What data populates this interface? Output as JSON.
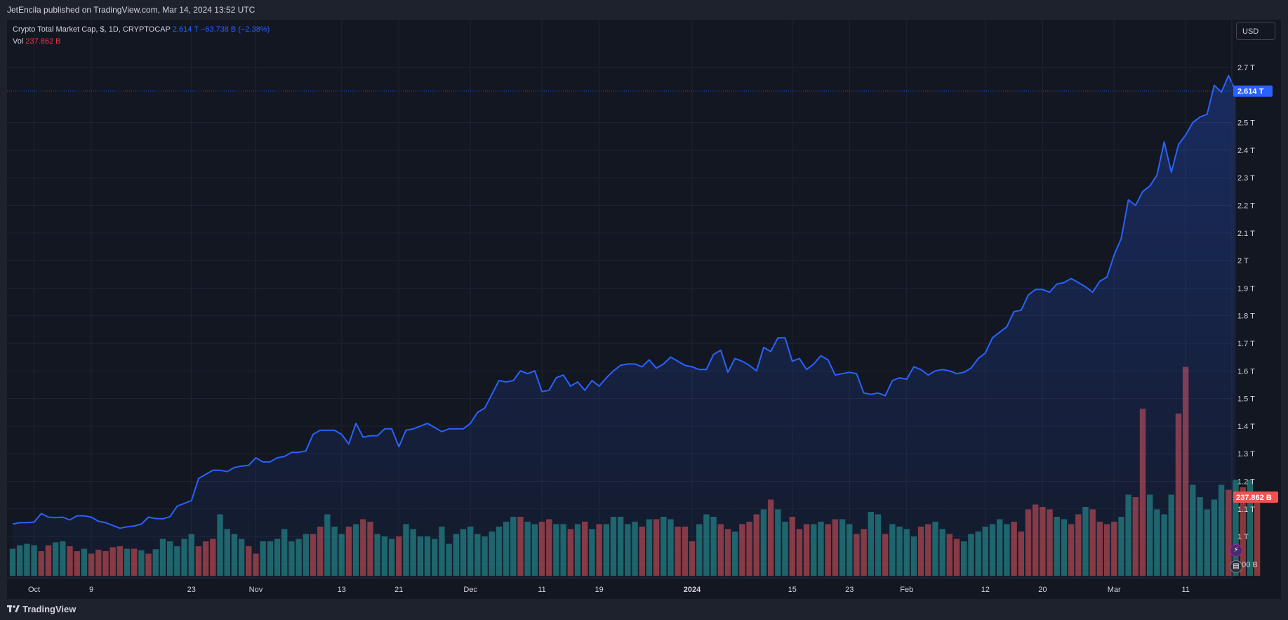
{
  "header": {
    "publish_line": "JetEncila published on TradingView.com, Mar 14, 2024 13:52 UTC"
  },
  "legend": {
    "symbol_text": "Crypto Total Market Cap, $, 1D, CRYPTOCAP",
    "last_value": "2.614 T",
    "change": "−63.738 B (−2.38%)",
    "vol_label": "Vol",
    "vol_value": "237.862 B"
  },
  "controls": {
    "currency_button": "USD"
  },
  "footer": {
    "brand": "TradingView"
  },
  "colors": {
    "line": "#2962ff",
    "up_bar": "#26a69a",
    "down_bar": "#ef5350",
    "background": "#131722",
    "grid": "#1f2430"
  },
  "chart_data": {
    "type": "area",
    "title": "Crypto Total Market Cap, $, 1D, CRYPTOCAP",
    "y_unit": "T",
    "ylim": [
      0.85,
      2.82
    ],
    "y_ticks": [
      {
        "value": 0.9,
        "label": "900 B"
      },
      {
        "value": 1.0,
        "label": "1 T"
      },
      {
        "value": 1.1,
        "label": "1.1 T"
      },
      {
        "value": 1.2,
        "label": "1.2 T"
      },
      {
        "value": 1.3,
        "label": "1.3 T"
      },
      {
        "value": 1.4,
        "label": "1.4 T"
      },
      {
        "value": 1.5,
        "label": "1.5 T"
      },
      {
        "value": 1.6,
        "label": "1.6 T"
      },
      {
        "value": 1.7,
        "label": "1.7 T"
      },
      {
        "value": 1.8,
        "label": "1.8 T"
      },
      {
        "value": 1.9,
        "label": "1.9 T"
      },
      {
        "value": 2.0,
        "label": "2 T"
      },
      {
        "value": 2.1,
        "label": "2.1 T"
      },
      {
        "value": 2.2,
        "label": "2.2 T"
      },
      {
        "value": 2.3,
        "label": "2.3 T"
      },
      {
        "value": 2.4,
        "label": "2.4 T"
      },
      {
        "value": 2.5,
        "label": "2.5 T"
      },
      {
        "value": 2.7,
        "label": "2.7 T"
      }
    ],
    "x_ticks": [
      {
        "day": 3,
        "label": "Oct"
      },
      {
        "day": 11,
        "label": "9"
      },
      {
        "day": 25,
        "label": "23"
      },
      {
        "day": 34,
        "label": "Nov"
      },
      {
        "day": 46,
        "label": "13"
      },
      {
        "day": 54,
        "label": "21"
      },
      {
        "day": 64,
        "label": "Dec"
      },
      {
        "day": 74,
        "label": "11"
      },
      {
        "day": 82,
        "label": "19"
      },
      {
        "day": 95,
        "label": "2024"
      },
      {
        "day": 109,
        "label": "15"
      },
      {
        "day": 117,
        "label": "23"
      },
      {
        "day": 125,
        "label": "Feb"
      },
      {
        "day": 136,
        "label": "12"
      },
      {
        "day": 144,
        "label": "20"
      },
      {
        "day": 154,
        "label": "Mar"
      },
      {
        "day": 164,
        "label": "11"
      }
    ],
    "price_label": "2.614 T",
    "last_price": 2.614,
    "volume_label": "237.862 B",
    "price": [
      1.045,
      1.05,
      1.05,
      1.052,
      1.083,
      1.07,
      1.068,
      1.07,
      1.06,
      1.075,
      1.075,
      1.07,
      1.055,
      1.05,
      1.04,
      1.03,
      1.035,
      1.038,
      1.045,
      1.07,
      1.065,
      1.064,
      1.072,
      1.11,
      1.12,
      1.13,
      1.21,
      1.225,
      1.24,
      1.24,
      1.235,
      1.25,
      1.255,
      1.258,
      1.285,
      1.27,
      1.27,
      1.285,
      1.29,
      1.305,
      1.305,
      1.31,
      1.37,
      1.385,
      1.385,
      1.385,
      1.37,
      1.335,
      1.41,
      1.36,
      1.365,
      1.365,
      1.39,
      1.39,
      1.325,
      1.385,
      1.39,
      1.4,
      1.41,
      1.395,
      1.38,
      1.39,
      1.39,
      1.39,
      1.41,
      1.45,
      1.465,
      1.515,
      1.565,
      1.56,
      1.565,
      1.6,
      1.59,
      1.6,
      1.525,
      1.53,
      1.575,
      1.585,
      1.545,
      1.56,
      1.53,
      1.565,
      1.545,
      1.575,
      1.6,
      1.62,
      1.625,
      1.625,
      1.615,
      1.64,
      1.61,
      1.625,
      1.65,
      1.635,
      1.62,
      1.615,
      1.605,
      1.605,
      1.66,
      1.675,
      1.595,
      1.645,
      1.635,
      1.62,
      1.6,
      1.685,
      1.67,
      1.72,
      1.72,
      1.635,
      1.645,
      1.605,
      1.625,
      1.655,
      1.64,
      1.585,
      1.59,
      1.595,
      1.59,
      1.52,
      1.515,
      1.52,
      1.51,
      1.565,
      1.575,
      1.57,
      1.615,
      1.605,
      1.585,
      1.6,
      1.605,
      1.6,
      1.59,
      1.595,
      1.61,
      1.645,
      1.665,
      1.72,
      1.74,
      1.76,
      1.815,
      1.82,
      1.875,
      1.895,
      1.895,
      1.885,
      1.915,
      1.92,
      1.935,
      1.92,
      1.905,
      1.885,
      1.925,
      1.94,
      2.02,
      2.08,
      2.22,
      2.2,
      2.25,
      2.27,
      2.31,
      2.43,
      2.32,
      2.42,
      2.455,
      2.5,
      2.52,
      2.53,
      2.635,
      2.61,
      2.67,
      2.614
    ],
    "volume": [
      0.905,
      0.912,
      0.915,
      0.912,
      0.9,
      0.912,
      0.918,
      0.92,
      0.91,
      0.9,
      0.905,
      0.895,
      0.903,
      0.9,
      0.908,
      0.91,
      0.905,
      0.905,
      0.902,
      0.895,
      0.904,
      0.925,
      0.92,
      0.91,
      0.925,
      0.935,
      0.91,
      0.92,
      0.925,
      0.975,
      0.945,
      0.935,
      0.925,
      0.91,
      0.895,
      0.92,
      0.92,
      0.925,
      0.945,
      0.92,
      0.925,
      0.935,
      0.935,
      0.95,
      0.975,
      0.95,
      0.935,
      0.95,
      0.955,
      0.965,
      0.96,
      0.935,
      0.93,
      0.925,
      0.93,
      0.955,
      0.945,
      0.93,
      0.93,
      0.925,
      0.95,
      0.915,
      0.935,
      0.945,
      0.95,
      0.935,
      0.93,
      0.94,
      0.95,
      0.96,
      0.97,
      0.97,
      0.96,
      0.955,
      0.96,
      0.965,
      0.955,
      0.955,
      0.945,
      0.955,
      0.96,
      0.945,
      0.955,
      0.955,
      0.97,
      0.97,
      0.955,
      0.96,
      0.95,
      0.965,
      0.965,
      0.97,
      0.965,
      0.95,
      0.95,
      0.92,
      0.955,
      0.975,
      0.97,
      0.955,
      0.945,
      0.94,
      0.955,
      0.96,
      0.975,
      0.985,
      1.005,
      0.985,
      0.96,
      0.97,
      0.945,
      0.955,
      0.955,
      0.96,
      0.955,
      0.965,
      0.965,
      0.955,
      0.935,
      0.945,
      0.98,
      0.975,
      0.935,
      0.955,
      0.95,
      0.945,
      0.93,
      0.95,
      0.955,
      0.96,
      0.945,
      0.935,
      0.925,
      0.92,
      0.935,
      0.94,
      0.95,
      0.955,
      0.965,
      0.955,
      0.96,
      0.94,
      0.985,
      0.995,
      0.99,
      0.985,
      0.97,
      0.965,
      0.955,
      0.975,
      0.99,
      0.985,
      0.96,
      0.955,
      0.96,
      0.97,
      1.015,
      1.01,
      1.19,
      1.015,
      0.985,
      0.975,
      1.015,
      1.18,
      1.275,
      1.035,
      1.01,
      0.985,
      1.005,
      1.035,
      1.025,
      1.045,
      1.03,
      1.045,
      1.01
    ],
    "volume_up": [
      true,
      true,
      true,
      true,
      false,
      false,
      true,
      true,
      false,
      false,
      true,
      false,
      false,
      false,
      false,
      false,
      true,
      false,
      true,
      false,
      true,
      true,
      true,
      true,
      true,
      true,
      false,
      false,
      false,
      true,
      true,
      true,
      true,
      false,
      false,
      true,
      true,
      true,
      true,
      true,
      true,
      true,
      false,
      false,
      true,
      true,
      true,
      false,
      true,
      false,
      false,
      true,
      true,
      true,
      false,
      true,
      true,
      true,
      true,
      true,
      true,
      true,
      true,
      true,
      true,
      true,
      true,
      true,
      true,
      true,
      true,
      false,
      true,
      true,
      false,
      false,
      true,
      true,
      false,
      true,
      false,
      true,
      false,
      true,
      true,
      true,
      true,
      true,
      false,
      true,
      false,
      true,
      true,
      false,
      false,
      false,
      true,
      true,
      true,
      false,
      false,
      true,
      false,
      false,
      false,
      true,
      false,
      true,
      true,
      false,
      false,
      false,
      true,
      true,
      false,
      false,
      true,
      true,
      false,
      false,
      true,
      true,
      false,
      true,
      true,
      true,
      true,
      false,
      false,
      true,
      true,
      false,
      false,
      true,
      true,
      true,
      true,
      true,
      true,
      true,
      false,
      false,
      false,
      false,
      false,
      false,
      true,
      true,
      false,
      false,
      true,
      false,
      false,
      false,
      false,
      true,
      true,
      false,
      false,
      true,
      true,
      true,
      true,
      false,
      false,
      true,
      true,
      true,
      true,
      true,
      false,
      true,
      false,
      true,
      false
    ]
  }
}
